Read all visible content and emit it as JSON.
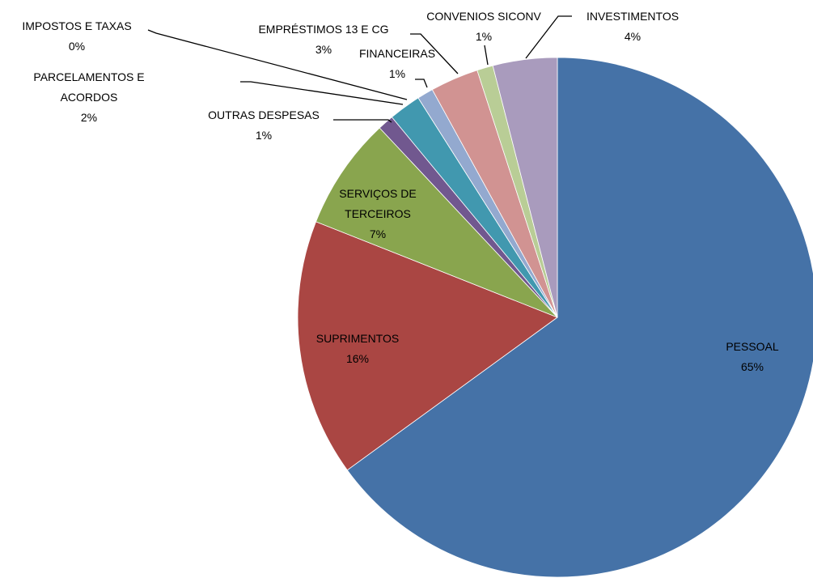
{
  "chart_data": {
    "type": "pie",
    "categories": [
      "PESSOAL",
      "SUPRIMENTOS",
      "SERVIÇOS DE TERCEIROS",
      "OUTRAS DESPESAS",
      "PARCELAMENTOS E ACORDOS",
      "IMPOSTOS E TAXAS",
      "FINANCEIRAS",
      "EMPRÉSTIMOS 13 E CG",
      "CONVENIOS SICONV",
      "INVESTIMENTOS"
    ],
    "values": [
      65,
      16,
      7,
      1,
      2,
      0,
      1,
      3,
      1,
      4
    ],
    "value_labels": [
      "65%",
      "16%",
      "7%",
      "1%",
      "2%",
      "0%",
      "1%",
      "3%",
      "1%",
      "4%"
    ],
    "colors": [
      "#4572a7",
      "#aa4643",
      "#89a54e",
      "#71588f",
      "#4198af",
      "#db843d",
      "#93a9cf",
      "#d19392",
      "#b9cd96",
      "#a99bbd"
    ]
  }
}
